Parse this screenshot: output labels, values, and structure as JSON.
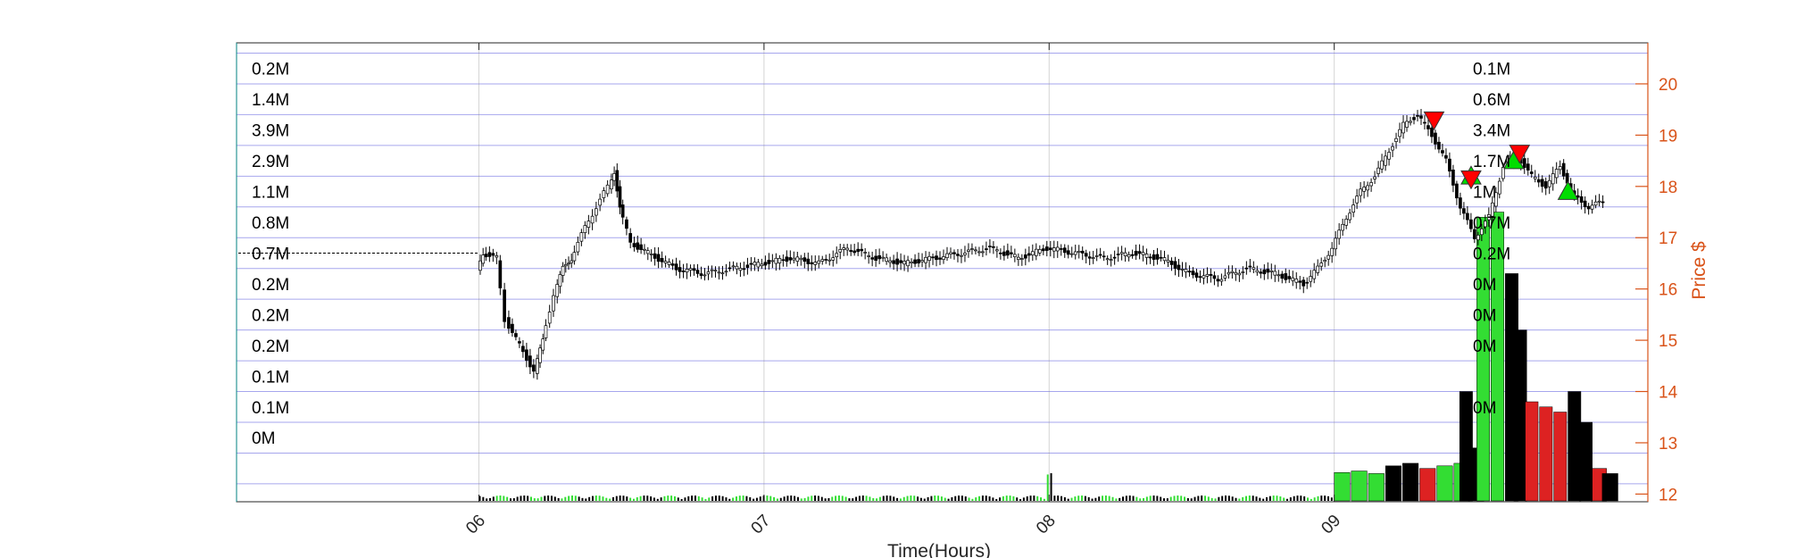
{
  "chart_data": {
    "type": "candlestick-volume-profile",
    "xlabel": "Time(Hours)",
    "ylabel": "Price $",
    "x_ticks": [
      "06",
      "07",
      "08",
      "09"
    ],
    "xlim_hours": [
      5.15,
      10.1
    ],
    "x_tick_positions": [
      6,
      7,
      8,
      9
    ],
    "ylim": [
      11.85,
      20.8
    ],
    "y_ticks": [
      12,
      13,
      14,
      15,
      16,
      17,
      18,
      19,
      20
    ],
    "price_levels": [
      12.2,
      12.8,
      13.4,
      14.0,
      14.6,
      15.2,
      15.8,
      16.4,
      17.0,
      17.6,
      18.2,
      18.8,
      19.4,
      20.0,
      20.6
    ],
    "left_profile": {
      "labels": [
        "0.2M",
        "1.4M",
        "3.9M",
        "2.9M",
        "1.1M",
        "0.8M",
        "0.7M",
        "0.2M",
        "0.2M",
        "0.2M",
        "0.1M",
        "0.1M",
        "0M"
      ],
      "values": [
        0.2,
        1.4,
        3.9,
        2.9,
        1.1,
        0.8,
        0.7,
        0.2,
        0.2,
        0.2,
        0.1,
        0.1,
        0.0
      ],
      "colors": [
        "#c8cae6",
        "#ccf7f7",
        "#e6c8cc",
        "#fde6c8",
        "#cce9f7",
        "#c8d6f2",
        "#c8d6f2",
        "#c8cae6",
        "#c8cae6",
        "#c8cae6",
        "#c8cae6",
        "#c8cae6",
        "#ffffff"
      ]
    },
    "right_profile": {
      "labels": [
        "0.1M",
        "0.6M",
        "3.4M",
        "1.7M",
        "1M",
        "0.7M",
        "0.2M",
        "0M",
        "0M",
        "0M",
        "",
        "0M",
        ""
      ],
      "values": [
        0.1,
        0.6,
        3.4,
        1.7,
        1.0,
        0.7,
        0.2,
        0.0,
        0.0,
        0.0,
        0.0,
        0.0,
        0.0
      ],
      "colors": [
        "#c8cae6",
        "#c8d6f9",
        "#e6c8cc",
        "#dcf7dc",
        "#cce9f7",
        "#c8d6f2",
        "#c8cae6",
        "#c8cae6",
        "#c8cae6",
        "#c8cae6",
        "#ffffff",
        "#c8cae6",
        "#ffffff"
      ]
    },
    "reference_line_price": 16.7,
    "price_path": [
      [
        6.0,
        16.4
      ],
      [
        6.02,
        16.7
      ],
      [
        6.07,
        16.6
      ],
      [
        6.1,
        15.4
      ],
      [
        6.15,
        14.9
      ],
      [
        6.2,
        14.4
      ],
      [
        6.23,
        15.0
      ],
      [
        6.27,
        15.9
      ],
      [
        6.3,
        16.4
      ],
      [
        6.33,
        16.6
      ],
      [
        6.38,
        17.2
      ],
      [
        6.42,
        17.6
      ],
      [
        6.46,
        18.0
      ],
      [
        6.48,
        18.3
      ],
      [
        6.5,
        17.6
      ],
      [
        6.54,
        16.9
      ],
      [
        6.6,
        16.7
      ],
      [
        6.7,
        16.4
      ],
      [
        6.8,
        16.3
      ],
      [
        6.9,
        16.4
      ],
      [
        7.0,
        16.5
      ],
      [
        7.1,
        16.6
      ],
      [
        7.2,
        16.5
      ],
      [
        7.3,
        16.8
      ],
      [
        7.4,
        16.6
      ],
      [
        7.5,
        16.5
      ],
      [
        7.6,
        16.6
      ],
      [
        7.7,
        16.7
      ],
      [
        7.8,
        16.8
      ],
      [
        7.9,
        16.6
      ],
      [
        8.0,
        16.8
      ],
      [
        8.1,
        16.7
      ],
      [
        8.2,
        16.6
      ],
      [
        8.3,
        16.7
      ],
      [
        8.4,
        16.6
      ],
      [
        8.5,
        16.3
      ],
      [
        8.6,
        16.2
      ],
      [
        8.7,
        16.4
      ],
      [
        8.8,
        16.3
      ],
      [
        8.9,
        16.1
      ],
      [
        8.95,
        16.4
      ],
      [
        9.0,
        16.8
      ],
      [
        9.05,
        17.4
      ],
      [
        9.1,
        17.9
      ],
      [
        9.15,
        18.2
      ],
      [
        9.2,
        18.7
      ],
      [
        9.25,
        19.2
      ],
      [
        9.3,
        19.4
      ],
      [
        9.35,
        19.0
      ],
      [
        9.4,
        18.5
      ],
      [
        9.45,
        17.6
      ],
      [
        9.5,
        17.0
      ],
      [
        9.55,
        17.4
      ],
      [
        9.6,
        18.4
      ],
      [
        9.65,
        18.6
      ],
      [
        9.7,
        18.2
      ],
      [
        9.75,
        18.0
      ],
      [
        9.8,
        18.4
      ],
      [
        9.85,
        17.8
      ],
      [
        9.9,
        17.6
      ],
      [
        9.95,
        17.7
      ]
    ],
    "spike_bars": [
      {
        "hour": 9.5,
        "value": 17.4,
        "color": "#33dd33"
      },
      {
        "hour": 9.55,
        "value": 17.5,
        "color": "#33dd33"
      },
      {
        "hour": 9.6,
        "value": 16.3,
        "color": "#000000"
      },
      {
        "hour": 9.63,
        "value": 15.2,
        "color": "#000000"
      },
      {
        "hour": 9.67,
        "value": 13.8,
        "color": "#dd2222"
      },
      {
        "hour": 9.72,
        "value": 13.7,
        "color": "#dd2222"
      },
      {
        "hour": 9.77,
        "value": 13.6,
        "color": "#dd2222"
      },
      {
        "hour": 9.82,
        "value": 14.0,
        "color": "#000000"
      },
      {
        "hour": 9.86,
        "value": 13.4,
        "color": "#000000"
      },
      {
        "hour": 9.44,
        "value": 14.0,
        "color": "#000000"
      }
    ],
    "volume_bars_right": [
      {
        "hour": 9.0,
        "value": 12.42,
        "color": "#33dd33"
      },
      {
        "hour": 9.06,
        "value": 12.45,
        "color": "#33dd33"
      },
      {
        "hour": 9.12,
        "value": 12.4,
        "color": "#33dd33"
      },
      {
        "hour": 9.18,
        "value": 12.55,
        "color": "#000000"
      },
      {
        "hour": 9.24,
        "value": 12.6,
        "color": "#000000"
      },
      {
        "hour": 9.3,
        "value": 12.5,
        "color": "#dd2222"
      },
      {
        "hour": 9.36,
        "value": 12.55,
        "color": "#33dd33"
      },
      {
        "hour": 9.42,
        "value": 12.6,
        "color": "#33dd33"
      },
      {
        "hour": 9.47,
        "value": 12.9,
        "color": "#000000"
      },
      {
        "hour": 9.9,
        "value": 12.5,
        "color": "#dd2222"
      },
      {
        "hour": 9.94,
        "value": 12.4,
        "color": "#000000"
      }
    ],
    "markers": [
      {
        "hour": 9.35,
        "price": 19.3,
        "type": "sell",
        "color": "#ff0000"
      },
      {
        "hour": 9.48,
        "price": 18.2,
        "type": "buy",
        "color": "#00dd00"
      },
      {
        "hour": 9.48,
        "price": 18.15,
        "type": "sell",
        "color": "#ff0000"
      },
      {
        "hour": 9.63,
        "price": 18.5,
        "type": "buy",
        "color": "#00dd00"
      },
      {
        "hour": 9.65,
        "price": 18.65,
        "type": "sell",
        "color": "#ff0000"
      },
      {
        "hour": 9.82,
        "price": 17.9,
        "type": "buy",
        "color": "#00dd00"
      }
    ],
    "colors": {
      "axis_right": "#d95319",
      "grid": "#0000cc",
      "up_volume": "#33dd33",
      "down_volume": "#dd2222"
    }
  }
}
